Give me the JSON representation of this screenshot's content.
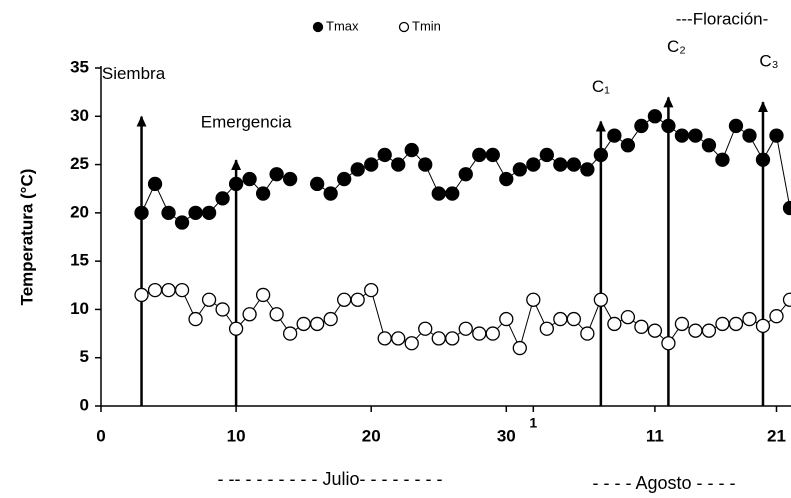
{
  "chart_data": {
    "type": "line",
    "y_label": "Temperatura (°C)",
    "x": [
      3,
      4,
      5,
      6,
      7,
      8,
      9,
      10,
      11,
      12,
      13,
      14,
      15,
      16,
      17,
      18,
      19,
      20,
      21,
      22,
      23,
      24,
      25,
      26,
      27,
      28,
      29,
      30,
      31,
      32,
      33,
      34,
      35,
      36,
      37,
      38,
      39,
      40,
      41,
      42,
      43,
      44,
      45,
      46,
      47,
      48,
      49,
      50,
      51
    ],
    "series": [
      {
        "name": "Tmax",
        "color": "#000000",
        "filled": true,
        "values": [
          20,
          23,
          20,
          19,
          20,
          20,
          21.5,
          23,
          23.5,
          22,
          24,
          23.5,
          null,
          23,
          22,
          23.5,
          24.5,
          25,
          26,
          25,
          26.5,
          25,
          22,
          22,
          24,
          26,
          26,
          23.5,
          24.5,
          25,
          26,
          25,
          25,
          24.5,
          26,
          28,
          27,
          29,
          30,
          29,
          28,
          28,
          27,
          25.5,
          29,
          28,
          25.5,
          28,
          20.5
        ]
      },
      {
        "name": "Tmin",
        "color": "#000000",
        "filled": false,
        "values": [
          11.5,
          12,
          12,
          12,
          9,
          11,
          10,
          8,
          9.5,
          11.5,
          9.5,
          7.5,
          8.5,
          8.5,
          9,
          11,
          11,
          12,
          7,
          7,
          6.5,
          8,
          7,
          7,
          8,
          7.5,
          7.5,
          9,
          6,
          11,
          8,
          9,
          9,
          7.5,
          11,
          8.5,
          9.2,
          8.2,
          7.8,
          6.5,
          8.5,
          7.8,
          7.8,
          8.5,
          8.5,
          9,
          8.3,
          9.3,
          11
        ]
      }
    ],
    "xlim": [
      0,
      51
    ],
    "ylim": [
      0,
      35
    ],
    "xticks": [
      0,
      10,
      20,
      30,
      {
        "value": 32,
        "label": "1"
      },
      {
        "value": 41,
        "label": "11"
      },
      {
        "value": 50,
        "label": "21"
      }
    ],
    "yticks": [
      0,
      5,
      10,
      15,
      20,
      25,
      30,
      35
    ],
    "annotations": [
      {
        "text": "Siembra",
        "x": 3,
        "y": 31
      },
      {
        "text": "Emergencia",
        "x": 10,
        "y": 26.5
      },
      {
        "text": "C₁",
        "x": 37,
        "y": 30.5
      },
      {
        "text": "C₂",
        "x": 42,
        "y": 33
      },
      {
        "text": "C₃",
        "x": 49,
        "y": 32.5
      }
    ],
    "stage_label": "---Floración-",
    "month_labels": [
      "- -- - - - - - - - Julio- - - - - - - -",
      "- - - - Agosto - - - -"
    ]
  }
}
